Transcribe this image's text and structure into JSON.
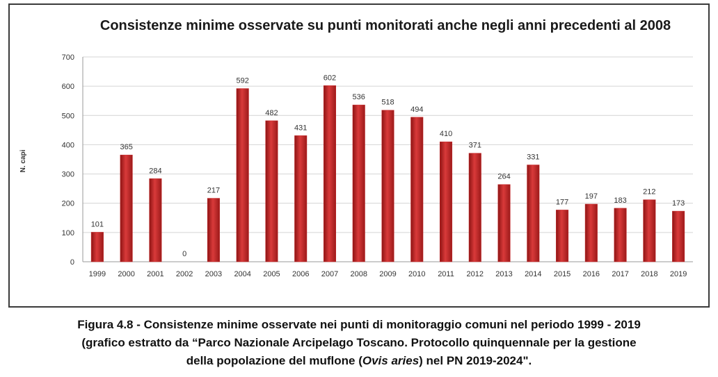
{
  "chart_data": {
    "type": "bar",
    "title": "Consistenze minime osservate su punti monitorati anche negli anni precedenti al 2008",
    "ylabel": "N. capi",
    "xlabel": "",
    "ylim": [
      0,
      700
    ],
    "yticks": [
      0,
      100,
      200,
      300,
      400,
      500,
      600,
      700
    ],
    "grid": true,
    "legend": "none",
    "bar_color": "#c8282a",
    "categories": [
      "1999",
      "2000",
      "2001",
      "2002",
      "2003",
      "2004",
      "2005",
      "2006",
      "2007",
      "2008",
      "2009",
      "2010",
      "2011",
      "2012",
      "2013",
      "2014",
      "2015",
      "2016",
      "2017",
      "2018",
      "2019"
    ],
    "values": [
      101,
      365,
      284,
      0,
      217,
      592,
      482,
      431,
      602,
      536,
      518,
      494,
      410,
      371,
      264,
      331,
      177,
      197,
      183,
      212,
      173
    ]
  },
  "caption": {
    "line1": "Figura 4.8 - Consistenze minime osservate nei punti di monitoraggio comuni nel periodo 1999 - 2019",
    "line2": "(grafico estratto da “Parco Nazionale Arcipelago Toscano. Protocollo quinquennale per la gestione",
    "line3_pre": "della popolazione del muflone (",
    "line3_italic": "Ovis aries",
    "line3_post": ") nel PN 2019-2024\"."
  }
}
